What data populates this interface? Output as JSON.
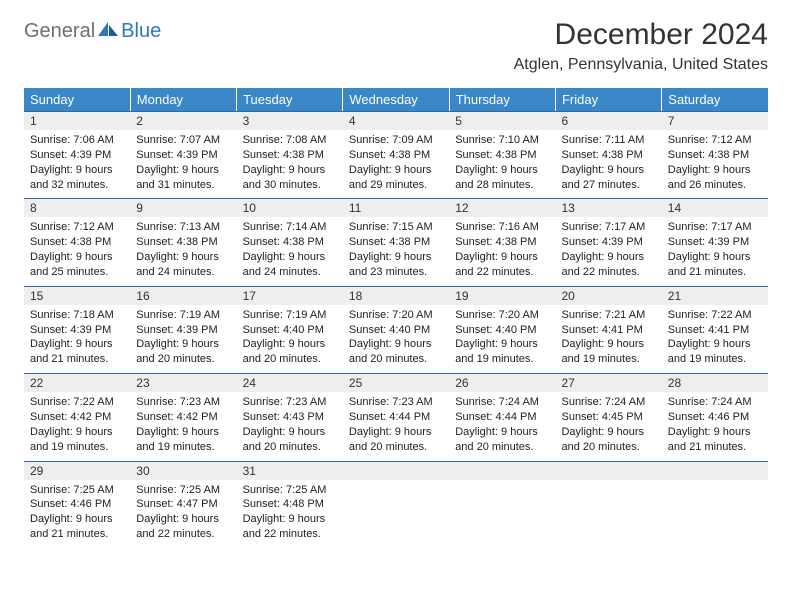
{
  "logo": {
    "text1": "General",
    "text2": "Blue"
  },
  "title": "December 2024",
  "subtitle": "Atglen, Pennsylvania, United States",
  "colors": {
    "header_bg": "#3a87c8",
    "header_text": "#ffffff",
    "daynum_bg": "#eeeeee",
    "row_border": "#2f6aa0",
    "logo_gray": "#6f6f6f",
    "logo_blue": "#2f78c1",
    "text": "#222222"
  },
  "font_sizes": {
    "title": 30,
    "subtitle": 16,
    "weekday": 13,
    "daynum": 12,
    "body": 11
  },
  "weekdays": [
    "Sunday",
    "Monday",
    "Tuesday",
    "Wednesday",
    "Thursday",
    "Friday",
    "Saturday"
  ],
  "weeks": [
    [
      {
        "n": "1",
        "sunrise": "7:06 AM",
        "sunset": "4:39 PM",
        "dl_h": "9",
        "dl_m": "32"
      },
      {
        "n": "2",
        "sunrise": "7:07 AM",
        "sunset": "4:39 PM",
        "dl_h": "9",
        "dl_m": "31"
      },
      {
        "n": "3",
        "sunrise": "7:08 AM",
        "sunset": "4:38 PM",
        "dl_h": "9",
        "dl_m": "30"
      },
      {
        "n": "4",
        "sunrise": "7:09 AM",
        "sunset": "4:38 PM",
        "dl_h": "9",
        "dl_m": "29"
      },
      {
        "n": "5",
        "sunrise": "7:10 AM",
        "sunset": "4:38 PM",
        "dl_h": "9",
        "dl_m": "28"
      },
      {
        "n": "6",
        "sunrise": "7:11 AM",
        "sunset": "4:38 PM",
        "dl_h": "9",
        "dl_m": "27"
      },
      {
        "n": "7",
        "sunrise": "7:12 AM",
        "sunset": "4:38 PM",
        "dl_h": "9",
        "dl_m": "26"
      }
    ],
    [
      {
        "n": "8",
        "sunrise": "7:12 AM",
        "sunset": "4:38 PM",
        "dl_h": "9",
        "dl_m": "25"
      },
      {
        "n": "9",
        "sunrise": "7:13 AM",
        "sunset": "4:38 PM",
        "dl_h": "9",
        "dl_m": "24"
      },
      {
        "n": "10",
        "sunrise": "7:14 AM",
        "sunset": "4:38 PM",
        "dl_h": "9",
        "dl_m": "24"
      },
      {
        "n": "11",
        "sunrise": "7:15 AM",
        "sunset": "4:38 PM",
        "dl_h": "9",
        "dl_m": "23"
      },
      {
        "n": "12",
        "sunrise": "7:16 AM",
        "sunset": "4:38 PM",
        "dl_h": "9",
        "dl_m": "22"
      },
      {
        "n": "13",
        "sunrise": "7:17 AM",
        "sunset": "4:39 PM",
        "dl_h": "9",
        "dl_m": "22"
      },
      {
        "n": "14",
        "sunrise": "7:17 AM",
        "sunset": "4:39 PM",
        "dl_h": "9",
        "dl_m": "21"
      }
    ],
    [
      {
        "n": "15",
        "sunrise": "7:18 AM",
        "sunset": "4:39 PM",
        "dl_h": "9",
        "dl_m": "21"
      },
      {
        "n": "16",
        "sunrise": "7:19 AM",
        "sunset": "4:39 PM",
        "dl_h": "9",
        "dl_m": "20"
      },
      {
        "n": "17",
        "sunrise": "7:19 AM",
        "sunset": "4:40 PM",
        "dl_h": "9",
        "dl_m": "20"
      },
      {
        "n": "18",
        "sunrise": "7:20 AM",
        "sunset": "4:40 PM",
        "dl_h": "9",
        "dl_m": "20"
      },
      {
        "n": "19",
        "sunrise": "7:20 AM",
        "sunset": "4:40 PM",
        "dl_h": "9",
        "dl_m": "19"
      },
      {
        "n": "20",
        "sunrise": "7:21 AM",
        "sunset": "4:41 PM",
        "dl_h": "9",
        "dl_m": "19"
      },
      {
        "n": "21",
        "sunrise": "7:22 AM",
        "sunset": "4:41 PM",
        "dl_h": "9",
        "dl_m": "19"
      }
    ],
    [
      {
        "n": "22",
        "sunrise": "7:22 AM",
        "sunset": "4:42 PM",
        "dl_h": "9",
        "dl_m": "19"
      },
      {
        "n": "23",
        "sunrise": "7:23 AM",
        "sunset": "4:42 PM",
        "dl_h": "9",
        "dl_m": "19"
      },
      {
        "n": "24",
        "sunrise": "7:23 AM",
        "sunset": "4:43 PM",
        "dl_h": "9",
        "dl_m": "20"
      },
      {
        "n": "25",
        "sunrise": "7:23 AM",
        "sunset": "4:44 PM",
        "dl_h": "9",
        "dl_m": "20"
      },
      {
        "n": "26",
        "sunrise": "7:24 AM",
        "sunset": "4:44 PM",
        "dl_h": "9",
        "dl_m": "20"
      },
      {
        "n": "27",
        "sunrise": "7:24 AM",
        "sunset": "4:45 PM",
        "dl_h": "9",
        "dl_m": "20"
      },
      {
        "n": "28",
        "sunrire": "",
        "sunrise": "7:24 AM",
        "sunset": "4:46 PM",
        "dl_h": "9",
        "dl_m": "21"
      }
    ],
    [
      {
        "n": "29",
        "sunrise": "7:25 AM",
        "sunset": "4:46 PM",
        "dl_h": "9",
        "dl_m": "21"
      },
      {
        "n": "30",
        "sunrise": "7:25 AM",
        "sunset": "4:47 PM",
        "dl_h": "9",
        "dl_m": "22"
      },
      {
        "n": "31",
        "sunrise": "7:25 AM",
        "sunset": "4:48 PM",
        "dl_h": "9",
        "dl_m": "22"
      },
      {
        "empty": true
      },
      {
        "empty": true
      },
      {
        "empty": true
      },
      {
        "empty": true
      }
    ]
  ],
  "labels": {
    "sunrise": "Sunrise: ",
    "sunset": "Sunset: ",
    "daylight_prefix": "Daylight: ",
    "hours_word": " hours",
    "and_word": "and ",
    "minutes_word": " minutes."
  }
}
